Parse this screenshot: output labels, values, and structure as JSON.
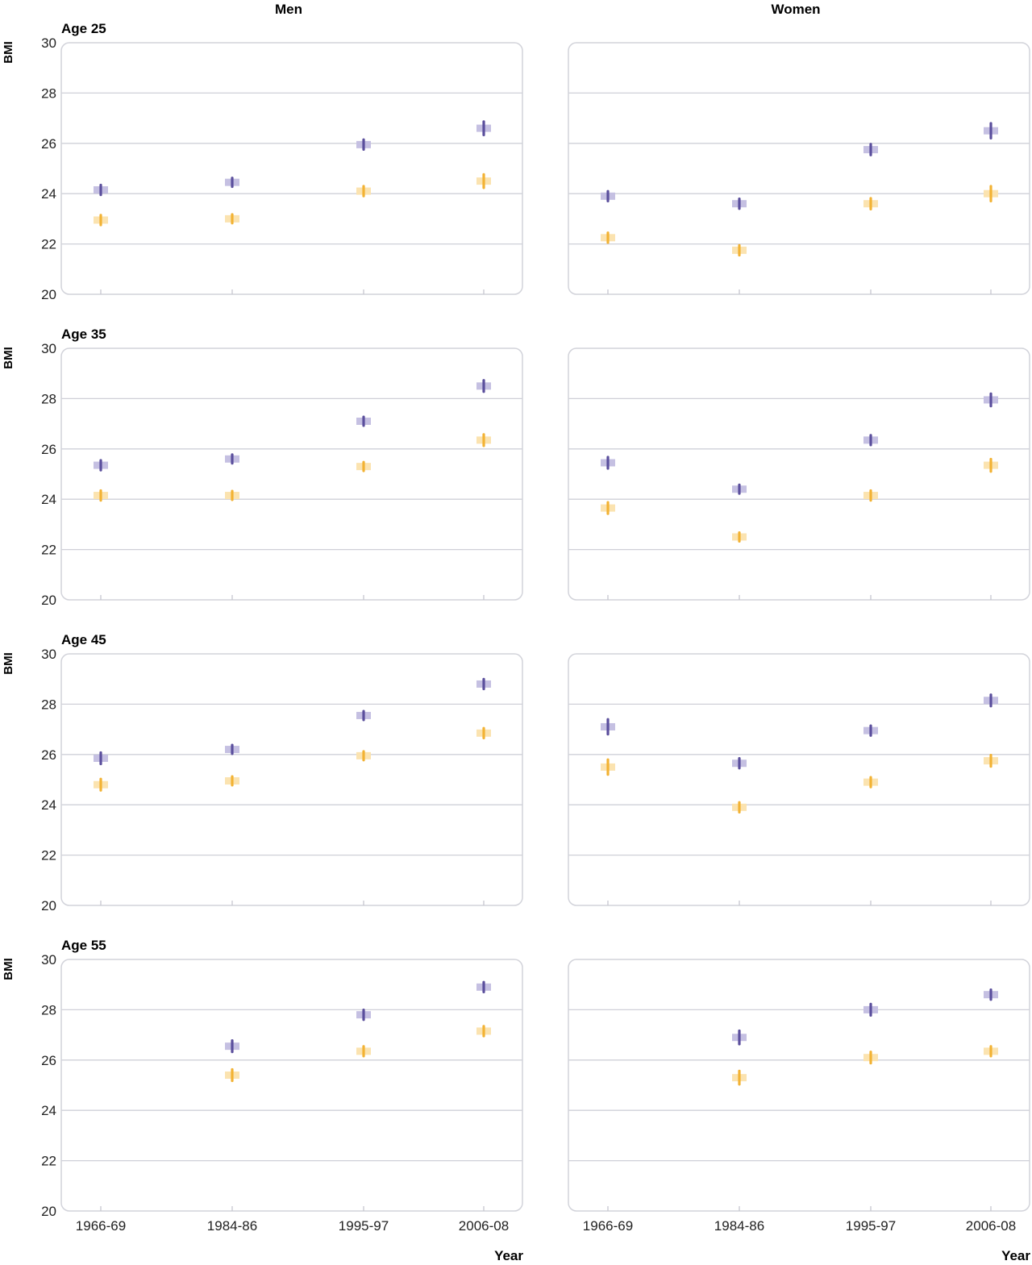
{
  "chart_data": {
    "type": "scatter",
    "columns": [
      "Men",
      "Women"
    ],
    "rows": [
      "Age 25",
      "Age 35",
      "Age 45",
      "Age 55"
    ],
    "ylabel": "BMI",
    "xlabel": "Year",
    "ylim": [
      20,
      30
    ],
    "yticks": [
      20,
      22,
      24,
      26,
      28,
      30
    ],
    "categories": [
      "1966-69",
      "1984-86",
      "1995-97",
      "2006-08"
    ],
    "grid": true,
    "colors": {
      "upper": "#5a4e9c",
      "upper_band": "#c5c0e2",
      "lower": "#f2b233",
      "lower_band": "#fbe3b0"
    },
    "panels": [
      {
        "row": "Age 25",
        "column": "Men",
        "upper": {
          "values": [
            24.15,
            24.45,
            25.95,
            26.6
          ],
          "half_range": [
            0.15,
            0.12,
            0.15,
            0.22
          ]
        },
        "lower": {
          "values": [
            22.95,
            23.0,
            24.1,
            24.5
          ],
          "half_range": [
            0.15,
            0.12,
            0.15,
            0.22
          ]
        }
      },
      {
        "row": "Age 25",
        "column": "Women",
        "upper": {
          "values": [
            23.9,
            23.6,
            25.75,
            26.5
          ],
          "half_range": [
            0.15,
            0.15,
            0.17,
            0.25
          ]
        },
        "lower": {
          "values": [
            22.25,
            21.75,
            23.6,
            24.0
          ],
          "half_range": [
            0.15,
            0.15,
            0.17,
            0.25
          ]
        }
      },
      {
        "row": "Age 35",
        "column": "Men",
        "upper": {
          "values": [
            25.35,
            25.6,
            27.1,
            28.5
          ],
          "half_range": [
            0.15,
            0.12,
            0.12,
            0.18
          ]
        },
        "lower": {
          "values": [
            24.15,
            24.15,
            25.3,
            26.35
          ],
          "half_range": [
            0.15,
            0.12,
            0.12,
            0.18
          ]
        }
      },
      {
        "row": "Age 35",
        "column": "Women",
        "upper": {
          "values": [
            25.45,
            24.4,
            26.35,
            27.95
          ],
          "half_range": [
            0.18,
            0.12,
            0.15,
            0.2
          ]
        },
        "lower": {
          "values": [
            23.65,
            22.5,
            24.15,
            25.35
          ],
          "half_range": [
            0.18,
            0.12,
            0.15,
            0.2
          ]
        }
      },
      {
        "row": "Age 45",
        "column": "Men",
        "upper": {
          "values": [
            25.85,
            26.2,
            27.55,
            28.8
          ],
          "half_range": [
            0.18,
            0.12,
            0.12,
            0.15
          ]
        },
        "lower": {
          "values": [
            24.8,
            24.95,
            25.95,
            26.85
          ],
          "half_range": [
            0.18,
            0.12,
            0.12,
            0.15
          ]
        }
      },
      {
        "row": "Age 45",
        "column": "Women",
        "upper": {
          "values": [
            27.1,
            25.65,
            26.95,
            28.15
          ],
          "half_range": [
            0.25,
            0.15,
            0.15,
            0.18
          ]
        },
        "lower": {
          "values": [
            25.5,
            23.9,
            24.9,
            25.75
          ],
          "half_range": [
            0.25,
            0.15,
            0.15,
            0.18
          ]
        }
      },
      {
        "row": "Age 55",
        "column": "Men",
        "upper": {
          "values": [
            null,
            26.55,
            27.8,
            28.9
          ],
          "half_range": [
            0,
            0.18,
            0.15,
            0.15
          ]
        },
        "lower": {
          "values": [
            null,
            25.4,
            26.35,
            27.15
          ],
          "half_range": [
            0,
            0.18,
            0.15,
            0.15
          ]
        }
      },
      {
        "row": "Age 55",
        "column": "Women",
        "upper": {
          "values": [
            null,
            26.9,
            28.0,
            28.6
          ],
          "half_range": [
            0,
            0.22,
            0.18,
            0.15
          ]
        },
        "lower": {
          "values": [
            null,
            25.3,
            26.1,
            26.35
          ],
          "half_range": [
            0,
            0.22,
            0.18,
            0.15
          ]
        }
      }
    ]
  }
}
